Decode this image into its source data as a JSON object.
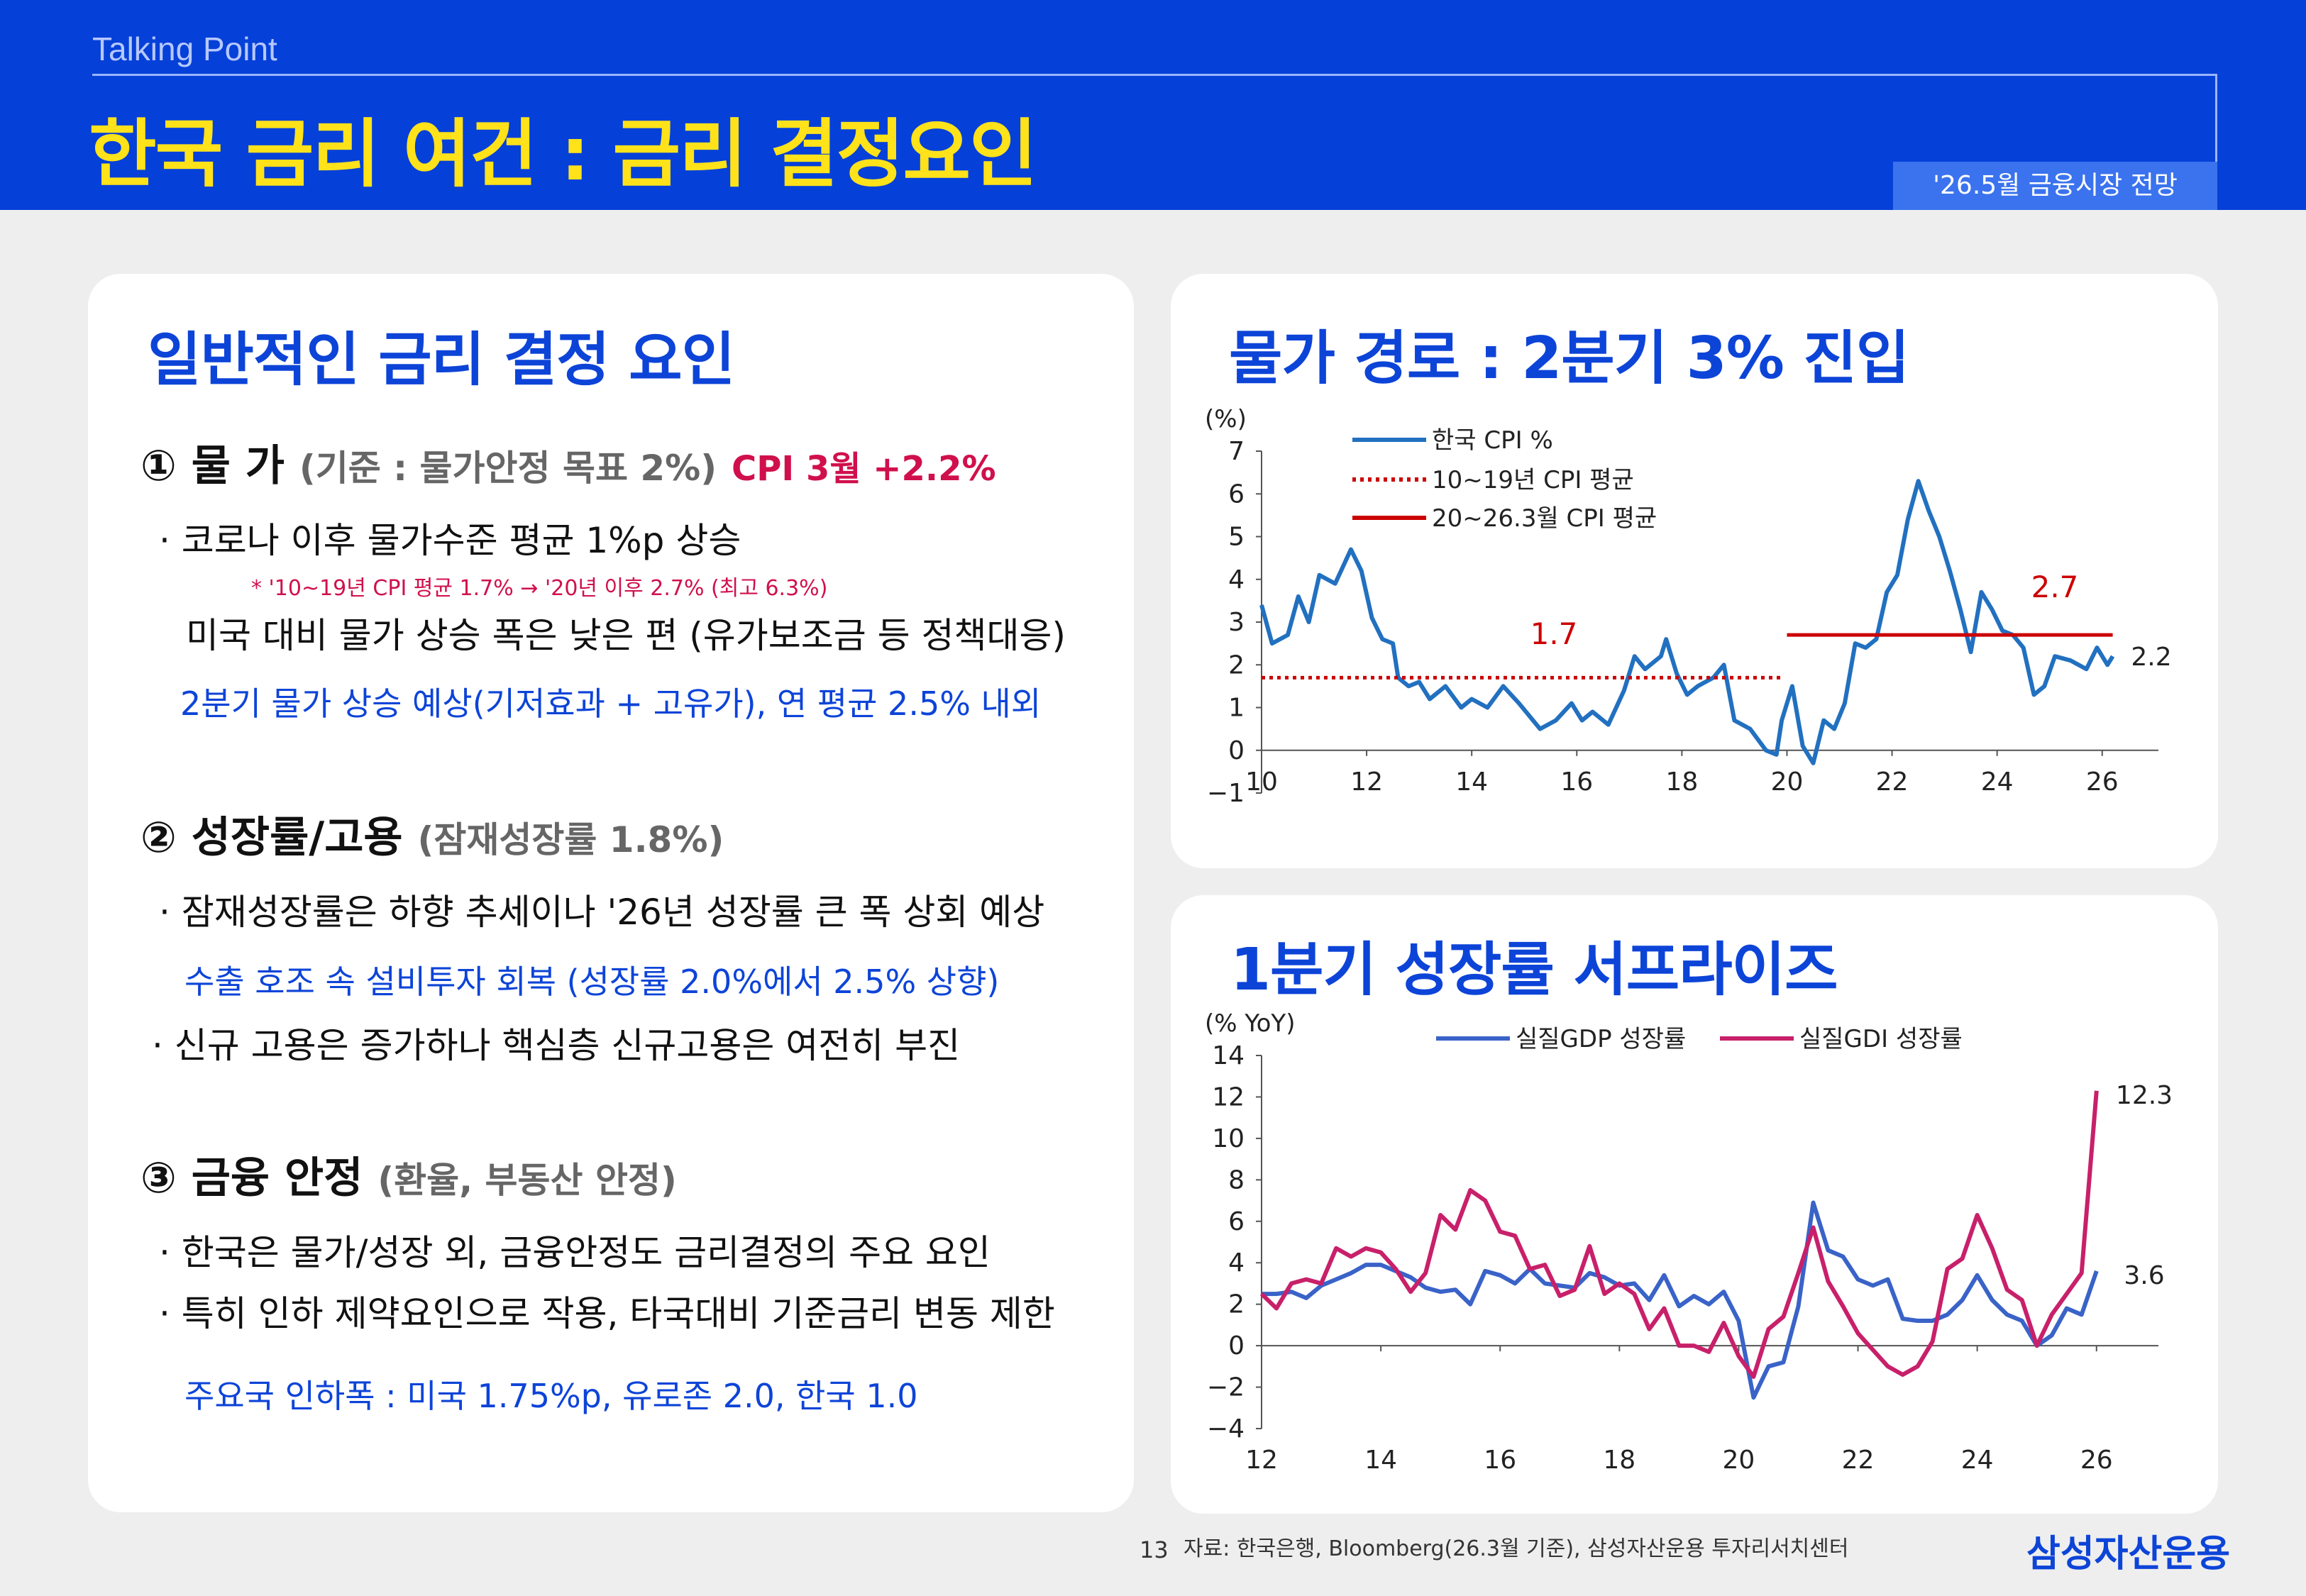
{
  "header": {
    "small_title": "Talking Point",
    "title": "한국 금리 여건 : 금리 결정요인",
    "badge": "'26.5월 금융시장 전망"
  },
  "left": {
    "title": "일반적인 금리 결정 요인",
    "s1": {
      "num": "①",
      "head": "물 가",
      "sub": "(기준 : 물가안정 목표 2%)",
      "cpi": "CPI 3월  +2.2%",
      "b1": "· 코로나 이후 물가수준 평균 1%p 상승",
      "note": "* '10~19년 CPI 평균 1.7% → '20년 이후 2.7% (최고 6.3%)",
      "b2": "미국 대비 물가 상승 폭은 낮은 편 (유가보조금 등 정책대응)",
      "b3": "2분기 물가 상승 예상(기저효과 + 고유가), 연 평균 2.5% 내외"
    },
    "s2": {
      "num": "②",
      "head": "성장률/고용",
      "sub": "(잠재성장률 1.8%)",
      "b1": "· 잠재성장률은 하향 추세이나 '26년 성장률 큰 폭 상회 예상",
      "b2": "수출 호조 속 설비투자 회복 (성장률 2.0%에서 2.5% 상향)",
      "b3": "· 신규 고용은 증가하나 핵심층 신규고용은 여전히 부진"
    },
    "s3": {
      "num": "③",
      "head": "금융 안정",
      "sub": "(환율, 부동산 안정)",
      "b1": "· 한국은 물가/성장 외, 금융안정도 금리결정의 주요 요인",
      "b2": "· 특히 인하 제약요인으로 작용, 타국대비 기준금리 변동 제한",
      "b3": "주요국 인하폭 : 미국 1.75%p, 유로존 2.0, 한국 1.0"
    }
  },
  "cpi_card": {
    "title": "물가 경로 : 2분기 3% 진입"
  },
  "gdp_card": {
    "title": "1분기 성장률 서프라이즈"
  },
  "footer": {
    "page": "13",
    "source": "자료: 한국은행, Bloomberg(26.3월 기준), 삼성자산운용 투자리서치센터",
    "logo": "삼성자산운용"
  },
  "colors": {
    "header_bg": "#0540d8",
    "accent_blue": "#0d44d8",
    "title_yellow": "#ffe21a",
    "cpi_line": "#2270c0",
    "avg_red": "#cc0000",
    "gdp_line": "#3a63c8",
    "gdi_line": "#c8206a"
  },
  "chart_data": [
    {
      "type": "line",
      "unit": "(%)",
      "x_ticks": [
        "10",
        "12",
        "14",
        "16",
        "18",
        "20",
        "22",
        "24",
        "26"
      ],
      "y_ticks": [
        -1,
        0,
        1,
        2,
        3,
        4,
        5,
        6,
        7
      ],
      "ylim": [
        -1,
        7
      ],
      "xlim": [
        2010,
        2026.8
      ],
      "legend_position": "top-left",
      "series": [
        {
          "name": "한국 CPI %",
          "color": "#2270c0",
          "points": [
            [
              2010.0,
              3.4
            ],
            [
              2010.2,
              2.5
            ],
            [
              2010.5,
              2.7
            ],
            [
              2010.7,
              3.6
            ],
            [
              2010.9,
              3.0
            ],
            [
              2011.1,
              4.1
            ],
            [
              2011.4,
              3.9
            ],
            [
              2011.7,
              4.7
            ],
            [
              2011.9,
              4.2
            ],
            [
              2012.1,
              3.1
            ],
            [
              2012.3,
              2.6
            ],
            [
              2012.5,
              2.5
            ],
            [
              2012.6,
              1.7
            ],
            [
              2012.8,
              1.5
            ],
            [
              2013.0,
              1.6
            ],
            [
              2013.2,
              1.2
            ],
            [
              2013.5,
              1.5
            ],
            [
              2013.8,
              1.0
            ],
            [
              2014.0,
              1.2
            ],
            [
              2014.3,
              1.0
            ],
            [
              2014.6,
              1.5
            ],
            [
              2014.9,
              1.1
            ],
            [
              2015.1,
              0.8
            ],
            [
              2015.3,
              0.5
            ],
            [
              2015.6,
              0.7
            ],
            [
              2015.9,
              1.1
            ],
            [
              2016.1,
              0.7
            ],
            [
              2016.3,
              0.9
            ],
            [
              2016.6,
              0.6
            ],
            [
              2016.9,
              1.4
            ],
            [
              2017.1,
              2.2
            ],
            [
              2017.3,
              1.9
            ],
            [
              2017.6,
              2.2
            ],
            [
              2017.7,
              2.6
            ],
            [
              2017.9,
              1.8
            ],
            [
              2018.1,
              1.3
            ],
            [
              2018.3,
              1.5
            ],
            [
              2018.6,
              1.7
            ],
            [
              2018.8,
              2.0
            ],
            [
              2019.0,
              0.7
            ],
            [
              2019.3,
              0.5
            ],
            [
              2019.6,
              0.0
            ],
            [
              2019.8,
              -0.1
            ],
            [
              2019.9,
              0.7
            ],
            [
              2020.1,
              1.5
            ],
            [
              2020.3,
              0.1
            ],
            [
              2020.5,
              -0.3
            ],
            [
              2020.7,
              0.7
            ],
            [
              2020.9,
              0.5
            ],
            [
              2021.1,
              1.1
            ],
            [
              2021.3,
              2.5
            ],
            [
              2021.5,
              2.4
            ],
            [
              2021.7,
              2.6
            ],
            [
              2021.9,
              3.7
            ],
            [
              2022.1,
              4.1
            ],
            [
              2022.3,
              5.4
            ],
            [
              2022.5,
              6.3
            ],
            [
              2022.7,
              5.6
            ],
            [
              2022.9,
              5.0
            ],
            [
              2023.1,
              4.2
            ],
            [
              2023.3,
              3.3
            ],
            [
              2023.5,
              2.3
            ],
            [
              2023.7,
              3.7
            ],
            [
              2023.9,
              3.3
            ],
            [
              2024.1,
              2.8
            ],
            [
              2024.3,
              2.7
            ],
            [
              2024.5,
              2.4
            ],
            [
              2024.7,
              1.3
            ],
            [
              2024.9,
              1.5
            ],
            [
              2025.1,
              2.2
            ],
            [
              2025.4,
              2.1
            ],
            [
              2025.7,
              1.9
            ],
            [
              2025.9,
              2.4
            ],
            [
              2026.1,
              2.0
            ],
            [
              2026.2,
              2.2
            ]
          ]
        },
        {
          "name": "10~19년 CPI 평균",
          "color": "#cc0000",
          "style": "dotted",
          "value": 1.7,
          "x_range": [
            2010,
            2019.9
          ]
        },
        {
          "name": "20~26.3월 CPI 평균",
          "color": "#cc0000",
          "style": "solid",
          "value": 2.7,
          "x_range": [
            2020,
            2026.2
          ]
        }
      ],
      "annotations": [
        "1.7",
        "2.7",
        "2.2"
      ]
    },
    {
      "type": "line",
      "unit": "(% YoY)",
      "x_ticks": [
        "12",
        "14",
        "16",
        "18",
        "20",
        "22",
        "24",
        "26"
      ],
      "y_ticks": [
        -4,
        -2,
        0,
        2,
        4,
        6,
        8,
        10,
        12,
        14
      ],
      "ylim": [
        -4,
        14
      ],
      "xlim": [
        2012,
        2026.8
      ],
      "legend_position": "top",
      "series": [
        {
          "name": "실질GDP 성장률",
          "color": "#3a63c8",
          "points": [
            [
              2012.0,
              2.5
            ],
            [
              2012.25,
              2.5
            ],
            [
              2012.5,
              2.6
            ],
            [
              2012.75,
              2.3
            ],
            [
              2013.0,
              2.9
            ],
            [
              2013.25,
              3.2
            ],
            [
              2013.5,
              3.5
            ],
            [
              2013.75,
              3.9
            ],
            [
              2014.0,
              3.9
            ],
            [
              2014.25,
              3.6
            ],
            [
              2014.5,
              3.3
            ],
            [
              2014.75,
              2.8
            ],
            [
              2015.0,
              2.6
            ],
            [
              2015.25,
              2.7
            ],
            [
              2015.5,
              2.0
            ],
            [
              2015.75,
              3.6
            ],
            [
              2016.0,
              3.4
            ],
            [
              2016.25,
              3.0
            ],
            [
              2016.5,
              3.7
            ],
            [
              2016.75,
              3.0
            ],
            [
              2017.0,
              2.9
            ],
            [
              2017.25,
              2.8
            ],
            [
              2017.5,
              3.5
            ],
            [
              2017.75,
              3.3
            ],
            [
              2018.0,
              2.9
            ],
            [
              2018.25,
              3.0
            ],
            [
              2018.5,
              2.2
            ],
            [
              2018.75,
              3.4
            ],
            [
              2019.0,
              1.9
            ],
            [
              2019.25,
              2.4
            ],
            [
              2019.5,
              2.0
            ],
            [
              2019.75,
              2.6
            ],
            [
              2020.0,
              1.2
            ],
            [
              2020.25,
              -2.5
            ],
            [
              2020.5,
              -1.0
            ],
            [
              2020.75,
              -0.8
            ],
            [
              2021.0,
              1.9
            ],
            [
              2021.25,
              6.9
            ],
            [
              2021.5,
              4.6
            ],
            [
              2021.75,
              4.3
            ],
            [
              2022.0,
              3.2
            ],
            [
              2022.25,
              2.9
            ],
            [
              2022.5,
              3.2
            ],
            [
              2022.75,
              1.3
            ],
            [
              2023.0,
              1.2
            ],
            [
              2023.25,
              1.2
            ],
            [
              2023.5,
              1.5
            ],
            [
              2023.75,
              2.2
            ],
            [
              2024.0,
              3.4
            ],
            [
              2024.25,
              2.2
            ],
            [
              2024.5,
              1.5
            ],
            [
              2024.75,
              1.2
            ],
            [
              2025.0,
              0.0
            ],
            [
              2025.25,
              0.5
            ],
            [
              2025.5,
              1.8
            ],
            [
              2025.75,
              1.5
            ],
            [
              2026.0,
              3.6
            ]
          ]
        },
        {
          "name": "실질GDI 성장률",
          "color": "#c8206a",
          "points": [
            [
              2012.0,
              2.5
            ],
            [
              2012.25,
              1.8
            ],
            [
              2012.5,
              3.0
            ],
            [
              2012.75,
              3.2
            ],
            [
              2013.0,
              3.0
            ],
            [
              2013.25,
              4.7
            ],
            [
              2013.5,
              4.3
            ],
            [
              2013.75,
              4.7
            ],
            [
              2014.0,
              4.5
            ],
            [
              2014.25,
              3.7
            ],
            [
              2014.5,
              2.6
            ],
            [
              2014.75,
              3.5
            ],
            [
              2015.0,
              6.3
            ],
            [
              2015.25,
              5.6
            ],
            [
              2015.5,
              7.5
            ],
            [
              2015.75,
              7.0
            ],
            [
              2016.0,
              5.5
            ],
            [
              2016.25,
              5.3
            ],
            [
              2016.5,
              3.7
            ],
            [
              2016.75,
              3.9
            ],
            [
              2017.0,
              2.4
            ],
            [
              2017.25,
              2.7
            ],
            [
              2017.5,
              4.8
            ],
            [
              2017.75,
              2.5
            ],
            [
              2018.0,
              3.0
            ],
            [
              2018.25,
              2.5
            ],
            [
              2018.5,
              0.8
            ],
            [
              2018.75,
              1.8
            ],
            [
              2019.0,
              0.0
            ],
            [
              2019.25,
              0.0
            ],
            [
              2019.5,
              -0.3
            ],
            [
              2019.75,
              1.1
            ],
            [
              2020.0,
              -0.5
            ],
            [
              2020.25,
              -1.5
            ],
            [
              2020.5,
              0.8
            ],
            [
              2020.75,
              1.4
            ],
            [
              2021.0,
              3.5
            ],
            [
              2021.25,
              5.7
            ],
            [
              2021.5,
              3.1
            ],
            [
              2021.75,
              1.9
            ],
            [
              2022.0,
              0.6
            ],
            [
              2022.25,
              -0.2
            ],
            [
              2022.5,
              -1.0
            ],
            [
              2022.75,
              -1.4
            ],
            [
              2023.0,
              -1.0
            ],
            [
              2023.25,
              0.2
            ],
            [
              2023.5,
              3.7
            ],
            [
              2023.75,
              4.2
            ],
            [
              2024.0,
              6.3
            ],
            [
              2024.25,
              4.7
            ],
            [
              2024.5,
              2.7
            ],
            [
              2024.75,
              2.2
            ],
            [
              2025.0,
              0.0
            ],
            [
              2025.25,
              1.5
            ],
            [
              2025.5,
              2.5
            ],
            [
              2025.75,
              3.5
            ],
            [
              2026.0,
              12.3
            ]
          ]
        }
      ],
      "annotations": [
        "12.3",
        "3.6"
      ]
    }
  ]
}
